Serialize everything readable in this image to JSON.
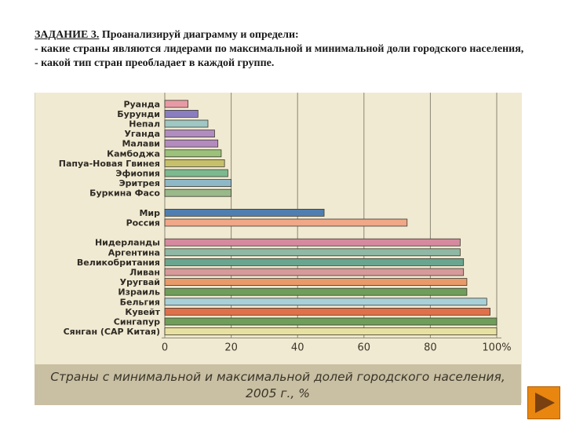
{
  "task": {
    "title": "ЗАДАНИЕ 3.",
    "intro": " Проанализируй диаграмму и определи:",
    "line1": "- какие страны являются лидерами по максимальной и минимальной доли городского населения,",
    "line2": "- какой тип стран преобладает в каждой группе."
  },
  "chart_data": {
    "type": "bar",
    "orientation": "horizontal",
    "caption_line1": "Страны с минимальной и максимальной долей городского населения,",
    "caption_line2": "2005 г., %",
    "xlim": [
      0,
      100
    ],
    "x_ticks": [
      "0",
      "20",
      "40",
      "60",
      "80",
      "100%"
    ],
    "grid": true,
    "groups": [
      {
        "name": "min",
        "categories": [
          "Руанда",
          "Бурунди",
          "Непал",
          "Уганда",
          "Малави",
          "Камбоджа",
          "Папуа-Новая Гвинея",
          "Эфиопия",
          "Эритрея",
          "Буркина Фасо"
        ],
        "values": [
          7,
          10,
          13,
          15,
          16,
          17,
          18,
          19,
          20,
          20
        ],
        "colors": [
          "#e89aa4",
          "#8a7ec0",
          "#9fc7c4",
          "#b08cc0",
          "#b38bbf",
          "#9bc17a",
          "#c7c06a",
          "#7cb98e",
          "#8fb8c7",
          "#9ab98a"
        ]
      },
      {
        "name": "world",
        "categories": [
          "Мир",
          "Россия"
        ],
        "values": [
          48,
          73
        ],
        "colors": [
          "#4f7fb1",
          "#f0a888"
        ]
      },
      {
        "name": "max",
        "categories": [
          "Нидерланды",
          "Аргентина",
          "Великобритания",
          "Ливан",
          "Уругвай",
          "Израиль",
          "Бельгия",
          "Кувейт",
          "Сингапур",
          "Сянган (САР Китая)"
        ],
        "values": [
          89,
          89,
          90,
          90,
          91,
          91,
          97,
          98,
          100,
          100
        ],
        "colors": [
          "#d68aa0",
          "#8fb8a5",
          "#6aa58f",
          "#d69a9a",
          "#e89a6a",
          "#6f9e5a",
          "#a8d0d8",
          "#e0704a",
          "#6f9e5a",
          "#e8e0a0"
        ]
      }
    ]
  },
  "nav": {
    "next_label": "next-slide"
  }
}
